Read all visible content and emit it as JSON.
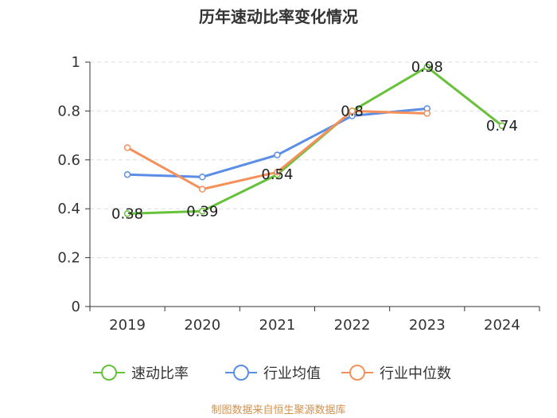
{
  "chart_data": {
    "type": "line",
    "title": "历年速动比率变化情况",
    "categories": [
      "2019",
      "2020",
      "2021",
      "2022",
      "2023",
      "2024"
    ],
    "y_ticks": [
      "0",
      "0.2",
      "0.4",
      "0.6",
      "0.8",
      "1"
    ],
    "ylim": [
      0,
      1
    ],
    "grid": true,
    "series": [
      {
        "name": "速动比率",
        "color": "#67c23a",
        "values": [
          0.38,
          0.39,
          0.54,
          0.8,
          0.98,
          0.74
        ],
        "labels": [
          "0.38",
          "0.39",
          "0.54",
          "0.8",
          "0.98",
          "0.74"
        ]
      },
      {
        "name": "行业均值",
        "color": "#5b8ee6",
        "values": [
          0.54,
          0.53,
          0.62,
          0.78,
          0.81,
          null
        ]
      },
      {
        "name": "行业中位数",
        "color": "#f4915a",
        "values": [
          0.65,
          0.48,
          0.55,
          0.8,
          0.79,
          null
        ]
      }
    ],
    "legend_position": "bottom"
  },
  "source": "制图数据来自恒生聚源数据库"
}
